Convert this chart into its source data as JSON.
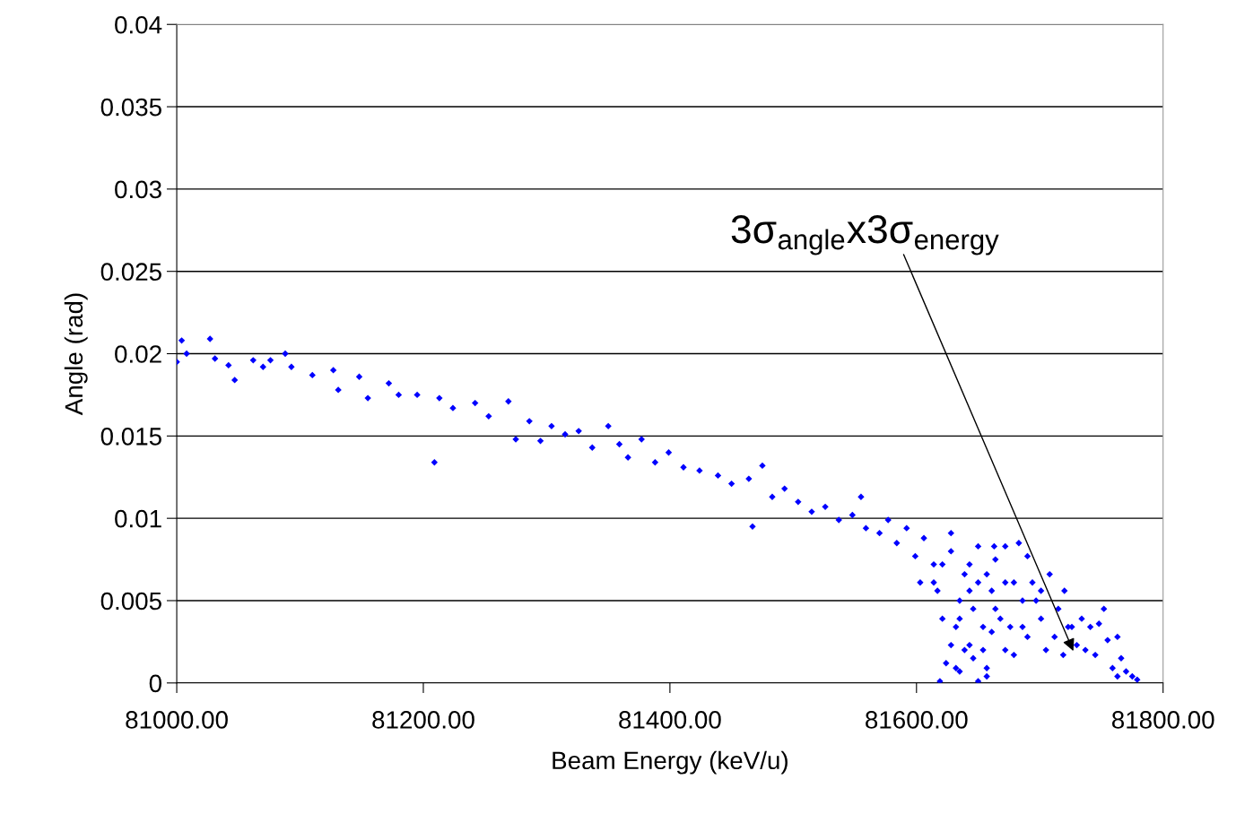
{
  "chart_data": {
    "type": "scatter",
    "xlabel": "Beam Energy (keV/u)",
    "ylabel": "Angle (rad)",
    "xlim": [
      81000,
      81800
    ],
    "xticks": [
      {
        "value": 81000,
        "label": "81000.00"
      },
      {
        "value": 81200,
        "label": "81200.00"
      },
      {
        "value": 81400,
        "label": "81400.00"
      },
      {
        "value": 81600,
        "label": "81600.00"
      },
      {
        "value": 81800,
        "label": "81800.00"
      }
    ],
    "ylim": [
      0,
      0.04
    ],
    "yticks": [
      0,
      0.005,
      0.01,
      0.015,
      0.02,
      0.025,
      0.03,
      0.035,
      0.04
    ],
    "grid": "y",
    "marker": "diamond",
    "annotations": [
      "3σ$_{angle}$x3σ$_{energy}$"
    ],
    "series": [
      {
        "color": "#0000ff",
        "x": [
          81000,
          81004,
          81008,
          81027,
          81031,
          81042,
          81047,
          81062,
          81070,
          81076,
          81088,
          81093,
          81110,
          81127,
          81131,
          81148,
          81155,
          81172,
          81180,
          81195,
          81209,
          81213,
          81224,
          81242,
          81253,
          81269,
          81275,
          81286,
          81295,
          81304,
          81315,
          81326,
          81337,
          81350,
          81359,
          81366,
          81377,
          81388,
          81399,
          81411,
          81424,
          81439,
          81450,
          81464,
          81467,
          81475,
          81483,
          81493,
          81504,
          81515,
          81526,
          81537,
          81548,
          81555,
          81559,
          81570,
          81577,
          81584,
          81592,
          81599,
          81606,
          81603,
          81614,
          81617,
          81621,
          81619,
          81624,
          81628,
          81632,
          81635,
          81639,
          81643,
          81646,
          81650,
          81654,
          81657,
          81661,
          81664,
          81668,
          81672,
          81679,
          81686,
          81690,
          81697,
          81705,
          81708,
          81715,
          81720,
          81726,
          81734,
          81737,
          81741,
          81748,
          81755,
          81759,
          81763,
          81766,
          81770,
          81775,
          81779,
          81663,
          81683,
          81657,
          81650,
          81635,
          81643,
          81650,
          81657,
          81664,
          81672,
          81676,
          81679,
          81686,
          81694,
          81701,
          81712,
          81719,
          81730,
          81745,
          81752,
          81701,
          81646,
          81639,
          81632,
          81654,
          81661,
          81690,
          81723,
          81628,
          81635,
          81614,
          81621,
          81643,
          81672,
          81628,
          81763
        ],
        "values": [
          0.0195,
          0.0208,
          0.02,
          0.0209,
          0.0197,
          0.0193,
          0.0184,
          0.0196,
          0.0192,
          0.0196,
          0.02,
          0.0192,
          0.0187,
          0.019,
          0.0178,
          0.0186,
          0.0173,
          0.0182,
          0.0175,
          0.0175,
          0.0134,
          0.0173,
          0.0167,
          0.017,
          0.0162,
          0.0171,
          0.0148,
          0.0159,
          0.0147,
          0.0156,
          0.0151,
          0.0153,
          0.0143,
          0.0156,
          0.0145,
          0.0137,
          0.0148,
          0.0134,
          0.014,
          0.0131,
          0.0129,
          0.0126,
          0.0121,
          0.0124,
          0.0095,
          0.0132,
          0.0113,
          0.0118,
          0.011,
          0.0104,
          0.0107,
          0.0099,
          0.0102,
          0.0113,
          0.0094,
          0.0091,
          0.0099,
          0.0085,
          0.0094,
          0.0077,
          0.0088,
          0.0061,
          0.0072,
          0.0056,
          0.0039,
          0.0001,
          0.0012,
          0.008,
          0.0034,
          0.0007,
          0.0066,
          0.0023,
          0.0045,
          0.0083,
          0.0034,
          0.0009,
          0.0056,
          0.0075,
          0.0039,
          0.002,
          0.0061,
          0.0034,
          0.0077,
          0.005,
          0.002,
          0.0066,
          0.0045,
          0.0056,
          0.0034,
          0.0039,
          0.002,
          0.0034,
          0.0036,
          0.0026,
          0.0009,
          0.0028,
          0.0015,
          0.0007,
          0.0004,
          0.0002,
          0.0083,
          0.0085,
          0.0004,
          0.0001,
          0.0039,
          0.0056,
          0.0061,
          0.0066,
          0.0045,
          0.0061,
          0.0034,
          0.0017,
          0.005,
          0.0061,
          0.0039,
          0.0028,
          0.0017,
          0.0023,
          0.0017,
          0.0045,
          0.0056,
          0.0015,
          0.002,
          0.0009,
          0.002,
          0.0031,
          0.0028,
          0.0034,
          0.0023,
          0.005,
          0.0061,
          0.0072,
          0.0072,
          0.0083,
          0.0091,
          0.0004
        ]
      }
    ]
  }
}
